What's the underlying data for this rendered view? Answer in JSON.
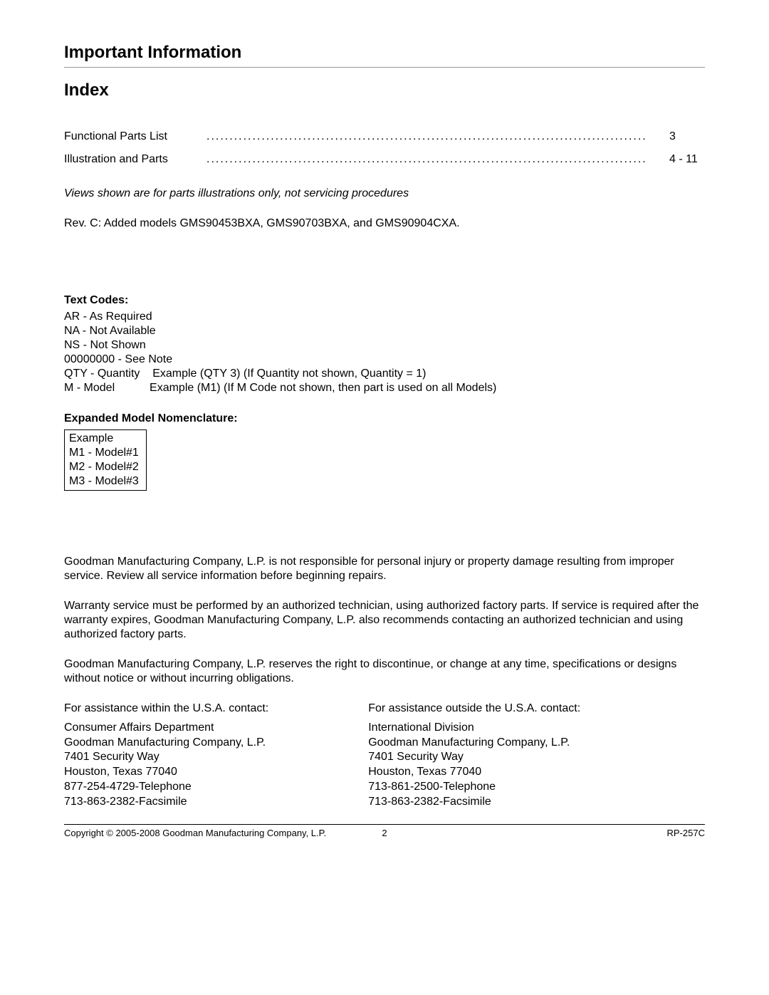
{
  "heading": "Important Information",
  "index_title": "Index",
  "toc": [
    {
      "label": "Functional Parts List",
      "page": "3"
    },
    {
      "label": "Illustration and Parts",
      "page": "4 - 11"
    }
  ],
  "views_note": "Views shown are for parts illustrations only, not servicing procedures",
  "revision_note": "Rev. C: Added models GMS90453BXA, GMS90703BXA, and GMS90904CXA.",
  "text_codes_heading": "Text Codes:",
  "text_codes": [
    "AR - As Required",
    "NA - Not Available",
    "NS - Not Shown",
    "00000000 - See Note",
    "QTY - Quantity    Example (QTY 3) (If Quantity not shown, Quantity = 1)",
    "M - Model           Example (M1) (If M Code not shown, then part is used on all Models)"
  ],
  "nomenclature_heading": "Expanded Model Nomenclature:",
  "example_box": [
    "Example",
    "M1 - Model#1",
    "M2 - Model#2",
    "M3 - Model#3"
  ],
  "disclaimers": [
    "Goodman Manufacturing Company, L.P. is not responsible for personal injury or property damage resulting from improper service. Review all service information before beginning repairs.",
    "Warranty service must be performed by an authorized technician, using authorized factory parts. If service is required after the warranty expires, Goodman Manufacturing Company, L.P. also recommends contacting an authorized technician and using authorized factory parts.",
    "Goodman Manufacturing Company, L.P. reserves the right to discontinue, or change at any time, specifications or designs without notice or without incurring obligations."
  ],
  "contact_usa": {
    "lead": "For assistance within the U.S.A. contact:",
    "lines": [
      "Consumer Affairs Department",
      "Goodman Manufacturing Company, L.P.",
      "7401 Security Way",
      "Houston, Texas 77040",
      "877-254-4729-Telephone",
      "713-863-2382-Facsimile"
    ]
  },
  "contact_intl": {
    "lead": "For assistance outside the U.S.A. contact:",
    "lines": [
      "International Division",
      "Goodman Manufacturing Company, L.P.",
      "7401 Security Way",
      "Houston, Texas 77040",
      "713-861-2500-Telephone",
      "713-863-2382-Facsimile"
    ]
  },
  "footer": {
    "copyright": "Copyright © 2005-2008 Goodman Manufacturing Company, L.P.",
    "page": "2",
    "doc": "RP-257C"
  },
  "dots": "...................................................................................................................."
}
